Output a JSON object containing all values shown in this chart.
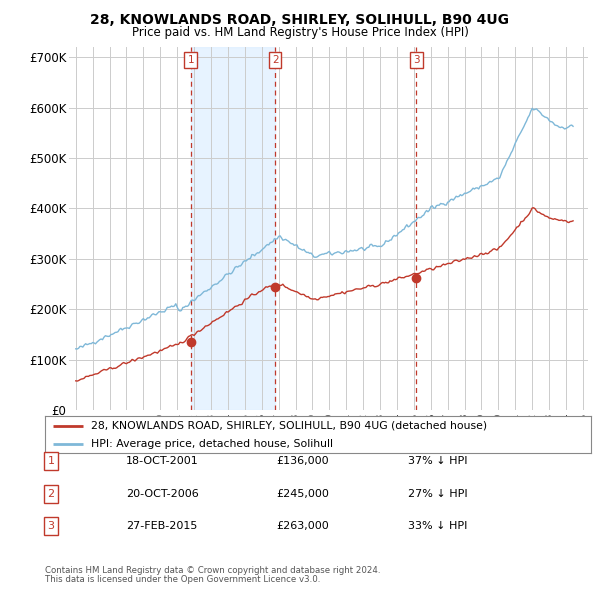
{
  "title": "28, KNOWLANDS ROAD, SHIRLEY, SOLIHULL, B90 4UG",
  "subtitle": "Price paid vs. HM Land Registry's House Price Index (HPI)",
  "sale_labels": [
    "1",
    "2",
    "3"
  ],
  "sale_pct": [
    "37% ↓ HPI",
    "27% ↓ HPI",
    "33% ↓ HPI"
  ],
  "sale_date_labels": [
    "18-OCT-2001",
    "20-OCT-2006",
    "27-FEB-2015"
  ],
  "sale_price_labels": [
    "£136,000",
    "£245,000",
    "£263,000"
  ],
  "sale_prices": [
    136000,
    245000,
    263000
  ],
  "sale_year_decimals": [
    2001.8,
    2006.8,
    2015.15
  ],
  "legend_line1": "28, KNOWLANDS ROAD, SHIRLEY, SOLIHULL, B90 4UG (detached house)",
  "legend_line2": "HPI: Average price, detached house, Solihull",
  "footnote1": "Contains HM Land Registry data © Crown copyright and database right 2024.",
  "footnote2": "This data is licensed under the Open Government Licence v3.0.",
  "yticks": [
    0,
    100000,
    200000,
    300000,
    400000,
    500000,
    600000,
    700000
  ],
  "hpi_color": "#7fb8d8",
  "price_color": "#c0392b",
  "vline_color": "#c0392b",
  "shade_color": "#ddeeff",
  "bg_color": "#ffffff",
  "grid_color": "#cccccc"
}
